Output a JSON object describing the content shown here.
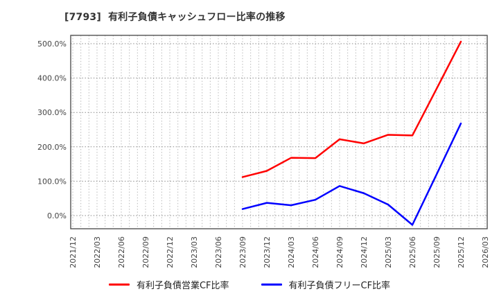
{
  "title": "[7793]  有利子負債キャッシュフロー比率の推移",
  "chart_data": {
    "type": "line",
    "title": "[7793]  有利子負債キャッシュフロー比率の推移",
    "xlabel": "",
    "ylabel": "",
    "x_tick_labels": [
      "2021/12",
      "2022/03",
      "2022/06",
      "2022/09",
      "2022/12",
      "2023/03",
      "2023/06",
      "2023/09",
      "2023/12",
      "2024/03",
      "2024/06",
      "2024/09",
      "2024/12",
      "2025/03",
      "2025/06",
      "2025/09",
      "2025/12",
      "2026/03"
    ],
    "y_ticks": [
      0,
      100,
      200,
      300,
      400,
      500
    ],
    "y_tick_labels": [
      "0.0%",
      "100.0%",
      "200.0%",
      "300.0%",
      "400.0%",
      "500.0%"
    ],
    "ylim": [
      -38,
      524
    ],
    "grid": "dotted monthly vertical lines, dotted horizontal lines every 100%",
    "legend_position": "bottom",
    "series": [
      {
        "name": "有利子負債営業CF比率",
        "color": "#ff0000",
        "x": [
          "2023/09",
          "2023/12",
          "2024/03",
          "2024/06",
          "2024/09",
          "2024/12",
          "2025/03",
          "2025/06",
          "2025/09",
          "2025/12"
        ],
        "values": [
          112,
          130,
          168,
          167,
          222,
          210,
          235,
          233,
          369,
          506
        ]
      },
      {
        "name": "有利子負債フリーCF比率",
        "color": "#0000ff",
        "x": [
          "2023/09",
          "2023/12",
          "2024/03",
          "2024/06",
          "2024/09",
          "2024/12",
          "2025/03",
          "2025/06",
          "2025/09",
          "2025/12"
        ],
        "values": [
          19,
          37,
          30,
          46,
          86,
          65,
          32,
          -27,
          120,
          268
        ]
      }
    ]
  },
  "legend": {
    "items": [
      {
        "label": "有利子負債営業CF比率",
        "color": "#ff0000"
      },
      {
        "label": "有利子負債フリーCF比率",
        "color": "#0000ff"
      }
    ]
  }
}
